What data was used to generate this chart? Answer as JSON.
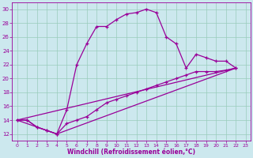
{
  "xlabel": "Windchill (Refroidissement éolien,°C)",
  "bg_color": "#cce8ee",
  "grid_color": "#99ccbb",
  "line_color": "#990099",
  "xlim": [
    -0.5,
    23.5
  ],
  "ylim": [
    11,
    31
  ],
  "xticks": [
    0,
    1,
    2,
    3,
    4,
    5,
    6,
    7,
    8,
    9,
    10,
    11,
    12,
    13,
    14,
    15,
    16,
    17,
    18,
    19,
    20,
    21,
    22,
    23
  ],
  "yticks": [
    12,
    14,
    16,
    18,
    20,
    22,
    24,
    26,
    28,
    30
  ],
  "line1_x": [
    0,
    1,
    2,
    3,
    4,
    5,
    6,
    7,
    8,
    9,
    10,
    11,
    12,
    13,
    14,
    15,
    16,
    17,
    18,
    19,
    20,
    21,
    22
  ],
  "line1_y": [
    14,
    14,
    13,
    12.5,
    12,
    15.5,
    22,
    25,
    27.5,
    27.5,
    28.5,
    29.3,
    29.5,
    30,
    29.5,
    26,
    25,
    21.5,
    23.5,
    23,
    22.5,
    22.5,
    21.5
  ],
  "line2_x": [
    0,
    1,
    2,
    3,
    4,
    5,
    6,
    7,
    8,
    9,
    10,
    11,
    12,
    13,
    14,
    15,
    16,
    17,
    18,
    19,
    20,
    21,
    22
  ],
  "line2_y": [
    14,
    14,
    13,
    12.5,
    12,
    13.5,
    14,
    14.5,
    15.5,
    16.5,
    17,
    17.5,
    18,
    18.5,
    19,
    19.5,
    20,
    20.5,
    21,
    21,
    21,
    21.2,
    21.5
  ],
  "line3_x": [
    0,
    4,
    22
  ],
  "line3_y": [
    14,
    12,
    21.5
  ],
  "line4_x": [
    0,
    22
  ],
  "line4_y": [
    14,
    21.5
  ]
}
